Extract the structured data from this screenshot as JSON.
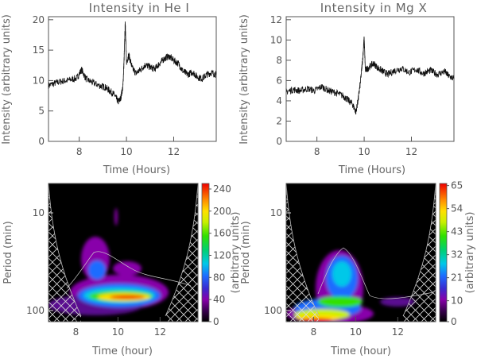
{
  "chart_data": [
    {
      "type": "line",
      "title": "Intensity in He I",
      "xlabel": "Time (Hours)",
      "ylabel": "Intensity (arbitrary units)",
      "xlim": [
        6.7,
        13.8
      ],
      "ylim": [
        0,
        20.5
      ],
      "xticks": [
        8,
        10,
        12
      ],
      "yticks": [
        0,
        5,
        10,
        15,
        20
      ],
      "series": [
        {
          "x": [
            6.7,
            7.0,
            7.3,
            7.6,
            7.9,
            8.1,
            8.3,
            8.6,
            8.9,
            9.1,
            9.3,
            9.5,
            9.65,
            9.75,
            9.85,
            9.9,
            9.95,
            10.0,
            10.1,
            10.25,
            10.4,
            10.6,
            10.8,
            11.0,
            11.2,
            11.4,
            11.6,
            11.8,
            12.0,
            12.2,
            12.4,
            12.6,
            12.8,
            13.0,
            13.2,
            13.4,
            13.6,
            13.8
          ],
          "y": [
            9.2,
            9.6,
            9.9,
            10.1,
            10.4,
            11.8,
            10.2,
            9.6,
            9.1,
            8.9,
            8.3,
            7.6,
            6.5,
            7.0,
            9.0,
            13.5,
            19.7,
            13.0,
            14.2,
            12.0,
            11.2,
            11.8,
            12.6,
            12.2,
            11.9,
            12.8,
            13.6,
            14.0,
            13.3,
            12.8,
            11.5,
            11.0,
            11.4,
            10.6,
            10.3,
            11.0,
            11.3,
            11.0
          ]
        }
      ]
    },
    {
      "type": "line",
      "title": "Intensity in Mg X",
      "xlabel": "Time (Hours)",
      "ylabel": "Intensity (arbitrary units)",
      "xlim": [
        6.7,
        13.8
      ],
      "ylim": [
        0,
        12.3
      ],
      "xticks": [
        8,
        10,
        12
      ],
      "yticks": [
        0,
        2,
        4,
        6,
        8,
        10,
        12
      ],
      "series": [
        {
          "x": [
            6.7,
            7.0,
            7.3,
            7.6,
            7.9,
            8.2,
            8.5,
            8.8,
            9.1,
            9.3,
            9.5,
            9.65,
            9.75,
            9.85,
            9.95,
            10.0,
            10.05,
            10.2,
            10.4,
            10.6,
            10.8,
            11.0,
            11.3,
            11.6,
            11.9,
            12.2,
            12.5,
            12.8,
            13.1,
            13.4,
            13.6,
            13.8
          ],
          "y": [
            4.9,
            5.1,
            5.0,
            5.2,
            5.0,
            5.4,
            5.0,
            4.8,
            4.5,
            4.1,
            3.7,
            2.9,
            4.2,
            6.0,
            8.5,
            10.2,
            7.0,
            7.3,
            7.7,
            7.2,
            6.9,
            6.6,
            7.0,
            7.2,
            6.8,
            7.1,
            6.7,
            7.0,
            6.6,
            6.9,
            6.4,
            6.2
          ]
        }
      ]
    },
    {
      "type": "heatmap",
      "xlabel": "Time (hour)",
      "ylabel": "Period (min)",
      "xlim": [
        6.7,
        13.8
      ],
      "ylim": [
        5,
        130
      ],
      "yscale": "log",
      "yreversed": true,
      "xticks": [
        8,
        10,
        12
      ],
      "yticks": [
        10,
        100
      ],
      "colorbar": {
        "label": "(arbitrary units)",
        "ticks": [
          0,
          40,
          80,
          120,
          160,
          200,
          240
        ],
        "range": [
          0,
          250
        ]
      }
    },
    {
      "type": "heatmap",
      "xlabel": "Time (hour)",
      "ylabel": "Period (min)",
      "xlim": [
        6.7,
        13.8
      ],
      "ylim": [
        5,
        130
      ],
      "yscale": "log",
      "yreversed": true,
      "xticks": [
        8,
        10,
        12
      ],
      "yticks": [
        10,
        100
      ],
      "colorbar": {
        "label": "(arbitrary units)",
        "ticks": [
          0,
          10,
          21,
          32,
          43,
          54,
          65
        ],
        "range": [
          0,
          66
        ]
      }
    }
  ]
}
